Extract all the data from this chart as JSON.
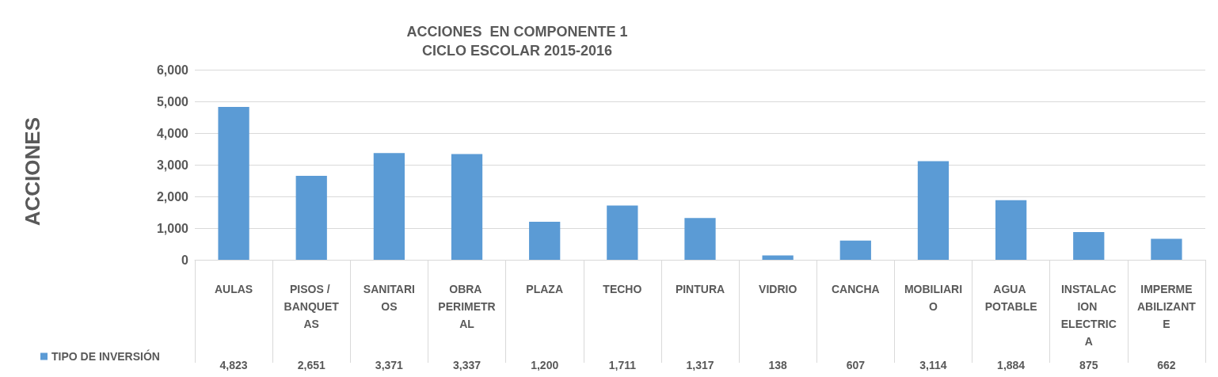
{
  "chart_data": {
    "type": "bar",
    "title": "ACCIONES  EN COMPONENTE 1",
    "subtitle": "CICLO ESCOLAR 2015-2016",
    "annotations": [
      "ACCIONES"
    ],
    "categories": [
      "AULAS",
      "PISOS / BANQUETAS",
      "SANITARIOS",
      "OBRA PERIMETRAL",
      "PLAZA",
      "TECHO",
      "PINTURA",
      "VIDRIO",
      "CANCHA",
      "MOBILIARIO",
      "AGUA POTABLE",
      "INSTALACION ELECTRICA",
      "IMPERMEABILIZANTE"
    ],
    "series": [
      {
        "name": "TIPO DE INVERSIÓN",
        "color": "#5b9bd5",
        "values": [
          4823,
          2651,
          3371,
          3337,
          1200,
          1711,
          1317,
          138,
          607,
          3114,
          1884,
          875,
          662
        ],
        "value_labels": [
          "4,823",
          "2,651",
          "3,371",
          "3,337",
          "1,200",
          "1,711",
          "1,317",
          "138",
          "607",
          "3,114",
          "1,884",
          "875",
          "662"
        ]
      }
    ],
    "ylim": [
      0,
      6000
    ],
    "yticks": [
      0,
      {
        "value": 1000,
        "label": "1,000"
      },
      {
        "value": 2000,
        "label": "2,000"
      },
      {
        "value": 3000,
        "label": "3,000"
      },
      {
        "value": 4000,
        "label": "4,000"
      },
      {
        "value": 5000,
        "label": "5,000"
      },
      {
        "value": 6000,
        "label": "6,000"
      }
    ],
    "grid": "y",
    "legend": "bottom left"
  }
}
